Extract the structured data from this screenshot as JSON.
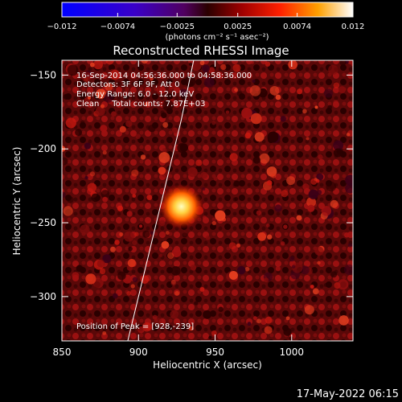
{
  "chart_data": {
    "type": "heatmap",
    "title": "Reconstructed RHESSI Image",
    "xlabel": "Heliocentric X (arcsec)",
    "ylabel": "Heliocentric Y (arcsec)",
    "xlim": [
      850,
      1040
    ],
    "ylim": [
      -330,
      -140
    ],
    "xticks": [
      850,
      900,
      950,
      1000
    ],
    "yticks": [
      -150,
      -200,
      -250,
      -300
    ],
    "colorbar": {
      "min": -0.012,
      "max": 0.012,
      "tick_values": [
        -0.012,
        -0.0074,
        -0.0025,
        0.0025,
        0.0074,
        0.012
      ],
      "tick_labels": [
        "-0.012",
        "-0.0074",
        "-0.0025",
        "0.0025",
        "0.0074",
        "0.012"
      ],
      "unit_label": "(photons cm⁻² s⁻¹ asec⁻²)"
    },
    "peak": {
      "x": 928,
      "y": -239
    },
    "annotations": [
      "16-Sep-2014 04:56:36.000 to 04:58:36.000",
      "Detectors: 3F 6F 9F, Att 0",
      "Energy Range: 6.0 - 12.0 keV",
      "Clean     Total counts: 7.87E+03"
    ],
    "peak_label": "Position of Peak = [928,-239]",
    "limb": [
      [
        893,
        -330
      ],
      [
        900,
        -300
      ],
      [
        907,
        -270
      ],
      [
        914,
        -240
      ],
      [
        921,
        -210
      ],
      [
        928,
        -180
      ],
      [
        934,
        -150
      ],
      [
        936,
        -140
      ]
    ]
  },
  "footer": {
    "timestamp": "17-May-2022 06:15"
  }
}
